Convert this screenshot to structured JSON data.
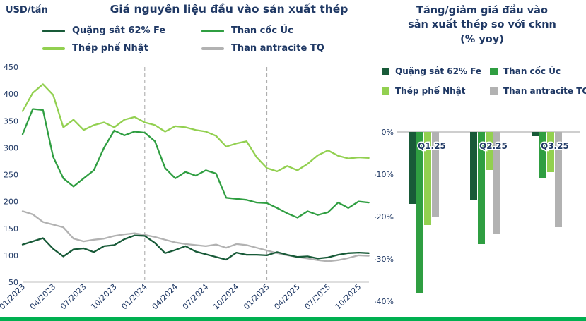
{
  "colors": {
    "navy": "#1f3864",
    "iron_ore": "#185a38",
    "coking_coal": "#2f9e41",
    "scrap": "#92d050",
    "anthracite": "#b2b2b2",
    "dashed_line": "#a6a6a6",
    "axis_line": "#bfbfbf",
    "zero_line": "#9e9e9e",
    "accent_strip": "#00b050"
  },
  "chart_data": [
    {
      "type": "line",
      "title": "Giá nguyên liệu đầu vào sản xuất thép",
      "ylabel": "USD/tấn",
      "ylim": [
        50,
        450
      ],
      "y_ticks": [
        450,
        400,
        350,
        300,
        250,
        200,
        150,
        100,
        50
      ],
      "x_tick_labels": [
        "01/2023",
        "04/2023",
        "07/2023",
        "10/2023",
        "01/2024",
        "04/2024",
        "07/2024",
        "10/2024",
        "01/2025",
        "04/2025",
        "07/2025",
        "10/2025"
      ],
      "x_tick_month_index": [
        0,
        3,
        6,
        9,
        12,
        15,
        18,
        21,
        24,
        27,
        30,
        33
      ],
      "dashed_marker_months": [
        12,
        24
      ],
      "points_unit": "monthly from 01/2023",
      "legend_position": "top",
      "grid": false,
      "series": [
        {
          "name": "Quặng sắt 62% Fe",
          "color_key": "iron_ore",
          "values": [
            120,
            126,
            132,
            112,
            98,
            111,
            113,
            106,
            117,
            119,
            130,
            137,
            136,
            123,
            104,
            110,
            117,
            107,
            102,
            97,
            92,
            105,
            101,
            101,
            100,
            106,
            101,
            97,
            98,
            94,
            96,
            101,
            104,
            105,
            104
          ]
        },
        {
          "name": "Than cốc Úc",
          "color_key": "coking_coal",
          "values": [
            325,
            372,
            370,
            283,
            243,
            228,
            243,
            258,
            300,
            332,
            323,
            330,
            328,
            312,
            262,
            243,
            255,
            248,
            258,
            252,
            207,
            205,
            203,
            198,
            197,
            188,
            178,
            170,
            182,
            175,
            180,
            198,
            188,
            200,
            198
          ]
        },
        {
          "name": "Thép phế Nhật",
          "color_key": "scrap",
          "values": [
            368,
            402,
            418,
            398,
            338,
            352,
            333,
            342,
            347,
            338,
            352,
            357,
            347,
            342,
            330,
            340,
            338,
            333,
            330,
            322,
            302,
            308,
            312,
            282,
            262,
            256,
            266,
            258,
            270,
            286,
            295,
            285,
            280,
            282,
            281
          ]
        },
        {
          "name": "Than antracite TQ",
          "color_key": "anthracite",
          "values": [
            182,
            176,
            162,
            157,
            152,
            131,
            126,
            129,
            131,
            136,
            139,
            141,
            138,
            134,
            129,
            124,
            121,
            119,
            117,
            120,
            114,
            121,
            119,
            114,
            109,
            104,
            100,
            97,
            94,
            91,
            89,
            91,
            95,
            100,
            99
          ]
        }
      ]
    },
    {
      "type": "bar",
      "title": "Tăng/giảm giá đầu vào sản xuất thép so với cknn (% yoy)",
      "title_lines": [
        "Tăng/giảm giá đầu vào",
        "sản xuất thép so với cknn",
        "(% yoy)"
      ],
      "categories": [
        "Q1.25",
        "Q2.25",
        "Q3.25"
      ],
      "ylim": [
        -40,
        0
      ],
      "y_tick_labels": [
        "0%",
        "-10%",
        "-20%",
        "-30%",
        "-40%"
      ],
      "unit": "%",
      "grid": false,
      "legend_position": "top",
      "series": [
        {
          "name": "Quặng sắt 62% Fe",
          "color_key": "iron_ore",
          "values": [
            -17,
            -16,
            -1
          ]
        },
        {
          "name": "Than cốc Úc",
          "color_key": "coking_coal",
          "values": [
            -38,
            -26.5,
            -11
          ]
        },
        {
          "name": "Thép phế Nhật",
          "color_key": "scrap",
          "values": [
            -22,
            -9,
            -9.5
          ]
        },
        {
          "name": "Than antracite TQ",
          "color_key": "anthracite",
          "values": [
            -20,
            -24,
            -22.5
          ]
        }
      ]
    }
  ]
}
